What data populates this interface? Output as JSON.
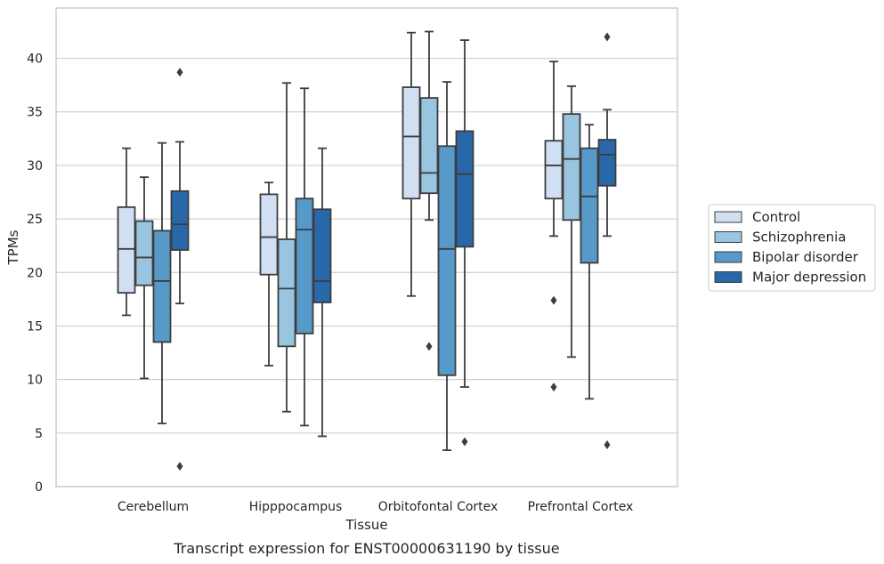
{
  "chart_data": {
    "type": "boxplot",
    "title": "",
    "caption": "Transcript expression for ENST00000631190 by tissue",
    "xlabel": "Tissue",
    "ylabel": "TPMs",
    "ylim": [
      0,
      44.7
    ],
    "yticks": [
      0,
      5,
      10,
      15,
      20,
      25,
      30,
      35,
      40
    ],
    "grid": "horizontal",
    "legend_placement": "center-right outside",
    "categories": [
      "Cerebellum",
      "Hipppocampus",
      "Orbitofontal Cortex",
      "Prefrontal Cortex"
    ],
    "series": [
      {
        "name": "Control",
        "color": "#d0e0f2",
        "boxes": [
          {
            "whislo": 16.0,
            "q1": 18.1,
            "med": 22.2,
            "q3": 26.1,
            "whishi": 31.6,
            "fliers": []
          },
          {
            "whislo": 11.3,
            "q1": 19.8,
            "med": 23.3,
            "q3": 27.3,
            "whishi": 28.4,
            "fliers": []
          },
          {
            "whislo": 17.8,
            "q1": 26.9,
            "med": 32.7,
            "q3": 37.3,
            "whishi": 42.4,
            "fliers": []
          },
          {
            "whislo": 23.4,
            "q1": 26.9,
            "med": 30.0,
            "q3": 32.3,
            "whishi": 39.7,
            "fliers": [
              17.4,
              9.3
            ]
          }
        ]
      },
      {
        "name": "Schizophrenia",
        "color": "#9ac5e0",
        "boxes": [
          {
            "whislo": 10.1,
            "q1": 18.8,
            "med": 21.4,
            "q3": 24.8,
            "whishi": 28.9,
            "fliers": []
          },
          {
            "whislo": 7.0,
            "q1": 13.1,
            "med": 18.5,
            "q3": 23.1,
            "whishi": 37.7,
            "fliers": []
          },
          {
            "whislo": 24.9,
            "q1": 27.4,
            "med": 29.3,
            "q3": 36.3,
            "whishi": 42.5,
            "fliers": [
              13.1
            ]
          },
          {
            "whislo": 12.1,
            "q1": 24.9,
            "med": 30.6,
            "q3": 34.8,
            "whishi": 37.4,
            "fliers": []
          }
        ]
      },
      {
        "name": "Bipolar disorder",
        "color": "#5799c8",
        "boxes": [
          {
            "whislo": 5.9,
            "q1": 13.5,
            "med": 19.2,
            "q3": 23.9,
            "whishi": 32.1,
            "fliers": []
          },
          {
            "whislo": 5.7,
            "q1": 14.3,
            "med": 24.0,
            "q3": 26.9,
            "whishi": 37.2,
            "fliers": []
          },
          {
            "whislo": 3.4,
            "q1": 10.4,
            "med": 22.2,
            "q3": 31.8,
            "whishi": 37.8,
            "fliers": []
          },
          {
            "whislo": 8.2,
            "q1": 20.9,
            "med": 27.1,
            "q3": 31.6,
            "whishi": 33.8,
            "fliers": []
          }
        ]
      },
      {
        "name": "Major depression",
        "color": "#2868a9",
        "boxes": [
          {
            "whislo": 17.1,
            "q1": 22.1,
            "med": 24.5,
            "q3": 27.6,
            "whishi": 32.2,
            "fliers": [
              38.7,
              1.9
            ]
          },
          {
            "whislo": 4.7,
            "q1": 17.2,
            "med": 19.2,
            "q3": 25.9,
            "whishi": 31.6,
            "fliers": []
          },
          {
            "whislo": 9.3,
            "q1": 22.4,
            "med": 29.2,
            "q3": 33.2,
            "whishi": 41.7,
            "fliers": [
              4.2
            ]
          },
          {
            "whislo": 23.4,
            "q1": 28.1,
            "med": 31.0,
            "q3": 32.4,
            "whishi": 35.2,
            "fliers": [
              42.0,
              3.9
            ]
          }
        ]
      }
    ]
  }
}
